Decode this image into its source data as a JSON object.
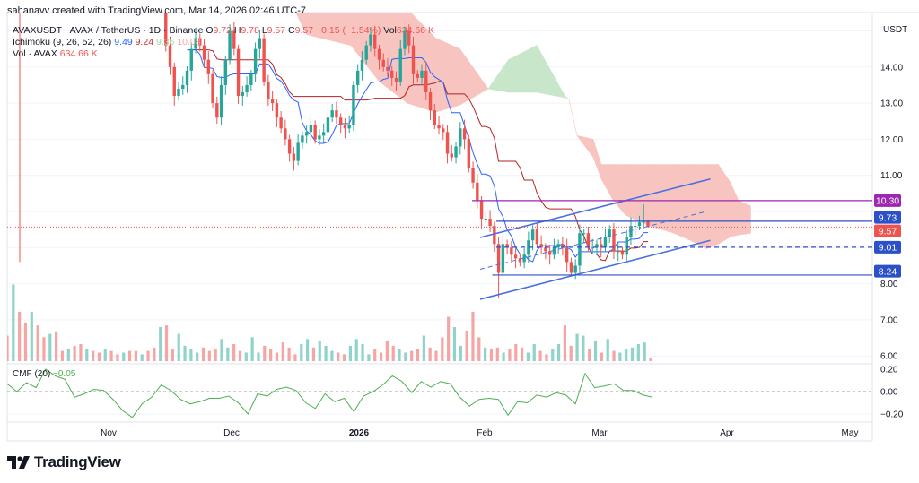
{
  "header": {
    "credit": "sahanavv created with TradingView.com, Mar 14, 2026 02:46 UTC-7",
    "symbol_line": "AVAXUSDT · AVAX / TetherUS · 1D · Binance",
    "ohlc": {
      "o_label": "O",
      "o": "9.72",
      "h_label": "H",
      "h": "9.78",
      "l_label": "L",
      "l": "9.57",
      "c_label": "C",
      "c": "9.57",
      "change": "−0.15 (−1.54%)",
      "vol_label": "Vol",
      "vol": "634.66 K"
    },
    "ichimoku": {
      "label": "Ichimoku (9, 26, 52, 26)",
      "conversion": "9.49",
      "base": "9.24",
      "span_a": "9.36",
      "span_b": "10.08"
    },
    "volume": {
      "label": "Vol · AVAX",
      "value": "634.66 K"
    },
    "cmf": {
      "label": "CMF (20)",
      "value": "−0.05"
    },
    "unit": "USDT"
  },
  "brand": {
    "name": "TradingView",
    "logo_icon": "tradingview-logo-icon"
  },
  "colors": {
    "up": "#26a69a",
    "down": "#ef5350",
    "tenkan": "#2962ff",
    "kijun": "#b22222",
    "cloud_bear": "#f8c4c0",
    "cloud_bull": "#c8e6c9",
    "cmf": "#4caf50",
    "resistance": "#9c27b0",
    "level": "#2b50c8"
  },
  "chart_data": {
    "type": "candlestick",
    "symbol": "AVAXUSDT",
    "interval": "1D",
    "y_ticks": [
      "14.00",
      "13.00",
      "12.00",
      "11.00",
      "8.00",
      "7.00",
      "6.00"
    ],
    "ylim": [
      5.8,
      15.6
    ],
    "x_ticks": [
      "Nov",
      "Dec",
      "2026",
      "Feb",
      "Mar",
      "Apr",
      "May"
    ],
    "last_candle": {
      "open": 9.72,
      "high": 9.78,
      "low": 9.57,
      "close": 9.57
    },
    "closes": [
      15.6,
      14.6,
      14.0,
      13.2,
      13.4,
      13.5,
      13.9,
      14.5,
      14.8,
      14.6,
      14.2,
      13.8,
      13.0,
      12.6,
      13.5,
      14.2,
      15.0,
      14.5,
      13.2,
      13.3,
      13.5,
      13.8,
      14.5,
      14.8,
      13.6,
      13.1,
      13.0,
      12.6,
      12.3,
      12.0,
      11.6,
      11.4,
      11.9,
      12.1,
      12.2,
      12.4,
      12.0,
      12.1,
      12.2,
      12.6,
      12.8,
      12.6,
      12.4,
      12.3,
      12.4,
      13.5,
      13.9,
      14.2,
      14.6,
      14.9,
      14.5,
      14.2,
      14.0,
      13.9,
      13.7,
      13.6,
      14.5,
      15.0,
      14.6,
      13.8,
      13.7,
      13.9,
      13.3,
      12.8,
      12.4,
      12.3,
      12.2,
      11.6,
      11.5,
      11.8,
      12.3,
      12.0,
      11.2,
      10.8,
      10.3,
      9.8,
      9.8,
      9.6,
      9.1,
      8.3,
      9.1,
      9.0,
      8.8,
      8.7,
      8.6,
      8.8,
      9.2,
      9.5,
      9.1,
      9.0,
      8.9,
      8.8,
      9.0,
      9.1,
      9.0,
      8.6,
      8.3,
      8.5,
      9.4,
      9.4,
      9.0,
      9.0,
      9.1,
      9.0,
      9.3,
      9.5,
      8.9,
      8.9,
      8.8,
      9.3,
      9.6,
      9.6,
      9.7,
      9.72,
      9.57
    ],
    "volume_relative": [
      30,
      90,
      58,
      45,
      58,
      42,
      28,
      32,
      35,
      12,
      14,
      18,
      20,
      14,
      12,
      10,
      14,
      12,
      8,
      10,
      12,
      12,
      8,
      12,
      16,
      40,
      42,
      14,
      32,
      18,
      14,
      10,
      16,
      12,
      14,
      26,
      16,
      20,
      12,
      10,
      28,
      10,
      18,
      14,
      10,
      22,
      16,
      8,
      20,
      26,
      16,
      24,
      18,
      12,
      10,
      8,
      18,
      26,
      20,
      8,
      14,
      10,
      24,
      18,
      14,
      10,
      12,
      14,
      30,
      16,
      12,
      28,
      52,
      40,
      18,
      36,
      58,
      28,
      16,
      14,
      16,
      10,
      14,
      20,
      16,
      10,
      20,
      12,
      8,
      14,
      20,
      42,
      18,
      32,
      30,
      14,
      24,
      10,
      26,
      12,
      10,
      14,
      16,
      20,
      22,
      4
    ],
    "cmf": [
      0.07,
      0.0,
      0.08,
      0.035,
      0.2,
      0.14,
      0.11,
      -0.05,
      -0.02,
      0.02,
      0.01,
      -0.07,
      -0.17,
      -0.23,
      -0.11,
      -0.05,
      0.06,
      0.01,
      -0.07,
      -0.11,
      -0.09,
      -0.06,
      -0.06,
      -0.04,
      -0.1,
      -0.2,
      -0.02,
      -0.04,
      0.02,
      0.04,
      0.01,
      -0.1,
      -0.15,
      -0.02,
      -0.09,
      -0.06,
      -0.18,
      -0.04,
      0.0,
      0.06,
      0.14,
      0.09,
      -0.01,
      0.09,
      0.04,
      0.09,
      0.07,
      -0.05,
      -0.13,
      -0.07,
      -0.06,
      -0.07,
      -0.21,
      -0.09,
      -0.1,
      -0.03,
      -0.05,
      -0.01,
      -0.03,
      -0.11,
      0.16,
      0.035,
      0.05,
      0.07,
      0.01,
      0.01,
      -0.03,
      -0.05
    ],
    "cmf_ticks": [
      "0.20",
      "0.00",
      "−0.20"
    ],
    "cloud": [
      {
        "date": "2025-12-17",
        "a": 15.6,
        "b": 16.5
      },
      {
        "date": "2025-12-20",
        "a": 14.9,
        "b": 16.5
      },
      {
        "date": "2025-12-31",
        "a": 14.6,
        "b": 16.5
      },
      {
        "date": "2026-01-07",
        "a": 13.6,
        "b": 16.5
      },
      {
        "date": "2026-01-14",
        "a": 13.0,
        "b": 15.6
      },
      {
        "date": "2026-01-21",
        "a": 12.75,
        "b": 14.8
      },
      {
        "date": "2026-01-27",
        "a": 12.95,
        "b": 14.5
      },
      {
        "date": "2026-02-03",
        "a": 13.4,
        "b": 13.4
      },
      {
        "date": "2026-02-08",
        "a": 14.2,
        "b": 13.3
      },
      {
        "date": "2026-02-15",
        "a": 14.6,
        "b": 13.3
      },
      {
        "date": "2026-02-22",
        "a": 13.2,
        "b": 13.15
      },
      {
        "date": "2026-02-23",
        "a": 13.1,
        "b": 13.1
      },
      {
        "date": "2026-02-25",
        "a": 12.1,
        "b": 12.1
      },
      {
        "date": "2026-03-01",
        "a": 11.5,
        "b": 12.0
      },
      {
        "date": "2026-03-03",
        "a": 10.9,
        "b": 11.3
      },
      {
        "date": "2026-03-06",
        "a": 10.3,
        "b": 11.3
      },
      {
        "date": "2026-03-09",
        "a": 9.9,
        "b": 11.3
      },
      {
        "date": "2026-03-15",
        "a": 9.6,
        "b": 11.3
      },
      {
        "date": "2026-03-21",
        "a": 9.4,
        "b": 11.3
      },
      {
        "date": "2026-03-26",
        "a": 9.15,
        "b": 11.3
      },
      {
        "date": "2026-03-29",
        "a": 8.97,
        "b": 11.3
      },
      {
        "date": "2026-04-01",
        "a": 9.1,
        "b": 11.3
      },
      {
        "date": "2026-04-04",
        "a": 9.3,
        "b": 10.8
      },
      {
        "date": "2026-04-06",
        "a": 9.35,
        "b": 10.3
      },
      {
        "date": "2026-04-09",
        "a": 9.4,
        "b": 10.15
      }
    ],
    "levels": [
      {
        "price": 10.3,
        "label": "10.30",
        "color": "#9c27b0",
        "style": "solid",
        "from": "2026-01-30"
      },
      {
        "price": 9.73,
        "label": "9.73",
        "color": "#2b50c8",
        "style": "solid",
        "from": "2026-02-05"
      },
      {
        "price": 9.01,
        "label": "9.01",
        "color": "#2b50c8",
        "style": "dashed",
        "from": "2026-02-05"
      },
      {
        "price": 8.24,
        "label": "8.24",
        "color": "#2b50c8",
        "style": "solid",
        "from": "2026-02-04"
      }
    ],
    "last_price": {
      "price": 9.57,
      "label": "9.57",
      "color": "#ef5350"
    },
    "channel": [
      {
        "name": "upper",
        "style": "solid",
        "from": {
          "date": "2026-02-01",
          "price": 9.28
        },
        "to": {
          "date": "2026-03-30",
          "price": 10.9
        }
      },
      {
        "name": "middle",
        "style": "dashed",
        "from": {
          "date": "2026-02-01",
          "price": 8.4
        },
        "to": {
          "date": "2026-03-29",
          "price": 10.0
        }
      },
      {
        "name": "lower",
        "style": "solid",
        "from": {
          "date": "2026-02-01",
          "price": 7.57
        },
        "to": {
          "date": "2026-03-30",
          "price": 9.2
        }
      }
    ]
  }
}
